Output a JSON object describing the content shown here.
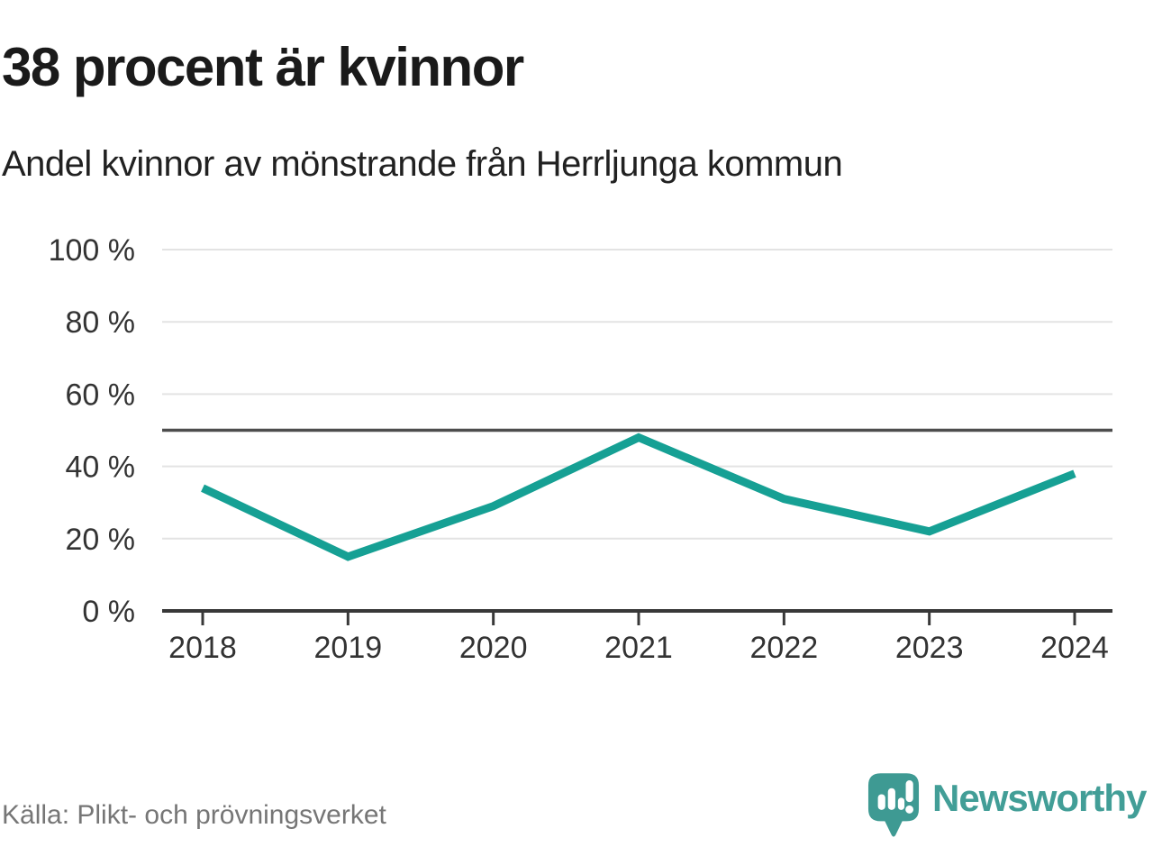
{
  "header": {
    "title": "38 procent är kvinnor",
    "subtitle": "Andel kvinnor av mönstrande från Herrljunga kommun"
  },
  "chart_data": {
    "type": "line",
    "title": "Andel kvinnor av mönstrande från Herrljunga kommun",
    "x": [
      "2018",
      "2019",
      "2020",
      "2021",
      "2022",
      "2023",
      "2024"
    ],
    "series": [
      {
        "name": "Andel kvinnor",
        "values": [
          34,
          15,
          29,
          48,
          31,
          22,
          38
        ]
      }
    ],
    "unit": "%",
    "ylim": [
      0,
      100
    ],
    "yticks": [
      {
        "label": "100 %",
        "value": 100
      },
      {
        "label": "80 %",
        "value": 80
      },
      {
        "label": "60 %",
        "value": 60
      },
      {
        "label": "40 %",
        "value": 40
      },
      {
        "label": "20 %",
        "value": 20
      },
      {
        "label": "0 %",
        "value": 0
      }
    ],
    "reference_line": {
      "value": 50
    },
    "grid": true,
    "legend": false
  },
  "footer": {
    "source": "Källa: Plikt- och prövningsverket",
    "brand": "Newsworthy"
  },
  "colors": {
    "line": "#16a094",
    "grid": "#e3e3e3",
    "axis": "#383838",
    "reference": "#4d4d4d",
    "title_text": "#1a1a1a",
    "axis_text": "#333333",
    "source_text": "#767676",
    "brand": "#429e97",
    "brand_icon": "#3e9a93"
  }
}
